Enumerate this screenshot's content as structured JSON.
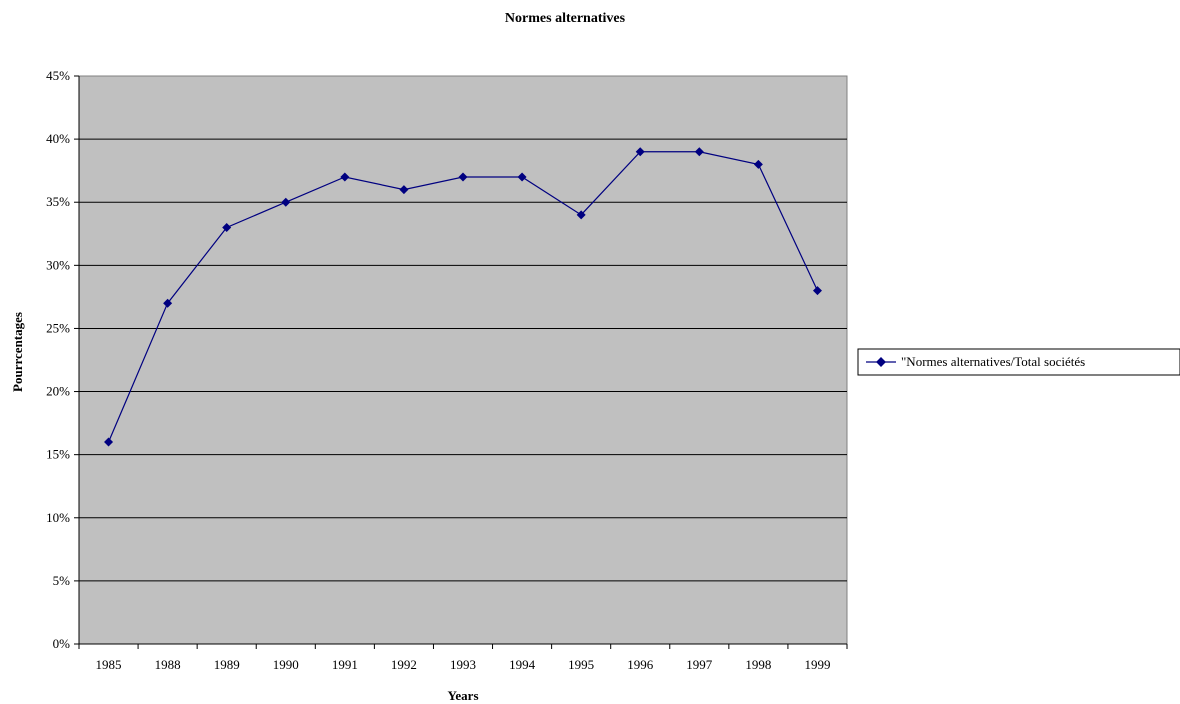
{
  "chart_data": {
    "type": "line",
    "title": "Normes alternatives",
    "xlabel": "Years",
    "ylabel": "Pourrcentages",
    "categories": [
      "1985",
      "1988",
      "1989",
      "1990",
      "1991",
      "1992",
      "1993",
      "1994",
      "1995",
      "1996",
      "1997",
      "1998",
      "1999"
    ],
    "series": [
      {
        "name": "\"Normes alternatives/Total sociétés",
        "values": [
          0.16,
          0.27,
          0.33,
          0.35,
          0.37,
          0.36,
          0.37,
          0.37,
          0.34,
          0.39,
          0.39,
          0.38,
          0.28
        ]
      }
    ],
    "ylim": [
      0,
      0.45
    ],
    "yticks": [
      {
        "value": 0,
        "label": "0%"
      },
      {
        "value": 0.05,
        "label": "5%"
      },
      {
        "value": 0.1,
        "label": "10%"
      },
      {
        "value": 0.15,
        "label": "15%"
      },
      {
        "value": 0.2,
        "label": "20%"
      },
      {
        "value": 0.25,
        "label": "25%"
      },
      {
        "value": 0.3,
        "label": "30%"
      },
      {
        "value": 0.35,
        "label": "35%"
      },
      {
        "value": 0.4,
        "label": "40%"
      },
      {
        "value": 0.45,
        "label": "45%"
      }
    ],
    "grid": true,
    "legend_position": "right",
    "colors": {
      "plot_background": "#c0c0c0",
      "series_line": "#000080",
      "gridline": "#000000"
    }
  }
}
